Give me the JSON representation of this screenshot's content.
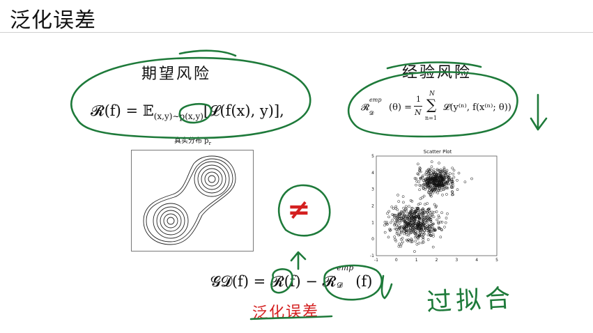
{
  "slide": {
    "title": "泛化误差"
  },
  "expected_risk": {
    "label": "期望风险",
    "formula_lhs": "𝓡(f) = 𝔼",
    "formula_sub": "(x,y)∼p(x,y)",
    "formula_rhs": "[𝓛(f(x), y)],",
    "caption": "真实分布 p",
    "caption_sub": "r"
  },
  "empirical_risk": {
    "label": "经验风险",
    "formula_lhs": "𝓡",
    "formula_sup": "emp",
    "formula_sub": "𝓓",
    "formula_mid": "(θ) =",
    "frac_num": "1",
    "frac_den": "N",
    "sum_top": "N",
    "sum_sym": "∑",
    "sum_bottom": "n=1",
    "formula_rhs": "𝓛(y⁽ⁿ⁾, f(x⁽ⁿ⁾; θ))"
  },
  "scatter": {
    "title": "Scatter Plot",
    "x_ticks": [
      "-1",
      "0",
      "1",
      "2",
      "3",
      "4",
      "5"
    ],
    "y_ticks": [
      "5",
      "4",
      "3",
      "2",
      "1",
      "0",
      "-1"
    ]
  },
  "generalization": {
    "formula": "𝓖𝓓(f) = 𝓡(f) − 𝓡",
    "formula_sup": "emp",
    "formula_sub": "𝓓",
    "formula_tail": "(f)",
    "red_label": "泛化误差",
    "not_equal": "≠",
    "overfit": "过拟合"
  },
  "colors": {
    "ink_green": "#1e7a3a",
    "ink_red": "#d42020",
    "text": "#111111"
  }
}
